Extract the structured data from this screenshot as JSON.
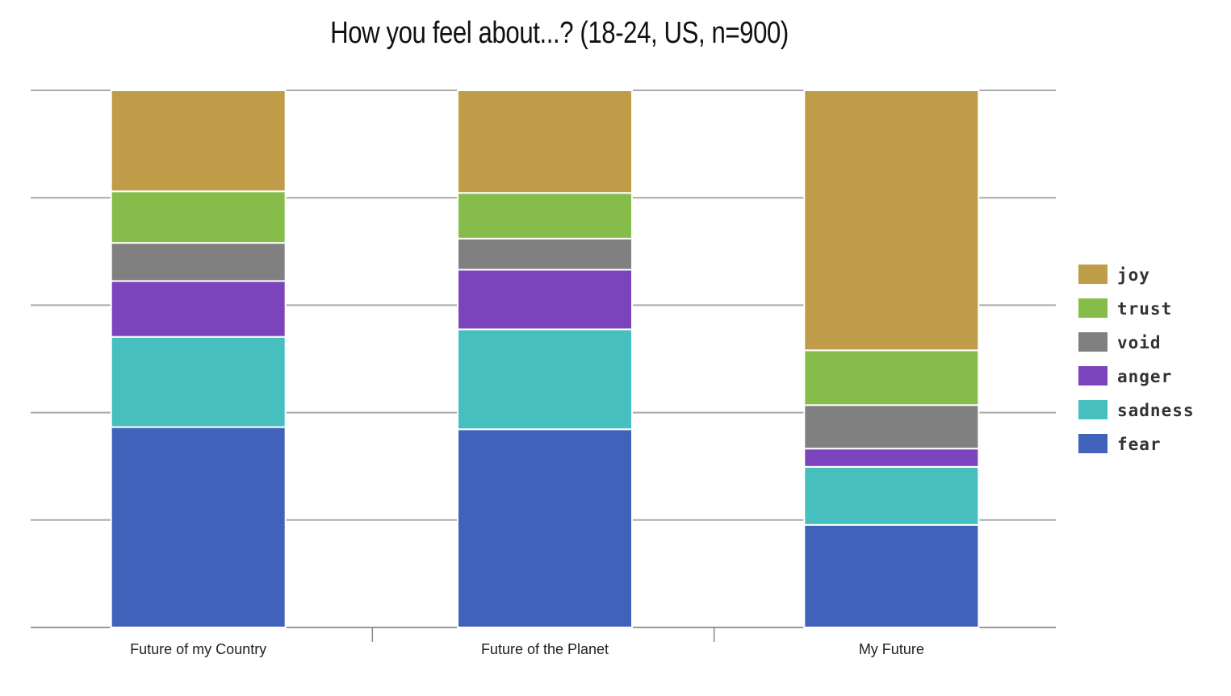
{
  "chart_data": {
    "type": "bar",
    "stacked": true,
    "title": "How you feel about...? (18-24, US, n=900)",
    "xlabel": "",
    "ylabel": "",
    "ylim": [
      0,
      100
    ],
    "grid": true,
    "legend_position": "right",
    "categories": [
      "Future of my Country",
      "Future of the Planet",
      "My Future"
    ],
    "series": [
      {
        "name": "fear",
        "color": "#4062bb",
        "values": [
          37.3,
          36.9,
          19.1
        ]
      },
      {
        "name": "sadness",
        "color": "#48bfbf",
        "values": [
          16.8,
          18.6,
          10.8
        ]
      },
      {
        "name": "anger",
        "color": "#7c44bc",
        "values": [
          10.4,
          11.1,
          3.4
        ]
      },
      {
        "name": "void",
        "color": "#808080",
        "values": [
          7.1,
          5.8,
          8.1
        ]
      },
      {
        "name": "trust",
        "color": "#86bd4a",
        "values": [
          9.6,
          8.5,
          10.2
        ]
      },
      {
        "name": "joy",
        "color": "#bf9c47",
        "values": [
          18.8,
          19.1,
          48.4
        ]
      }
    ]
  }
}
